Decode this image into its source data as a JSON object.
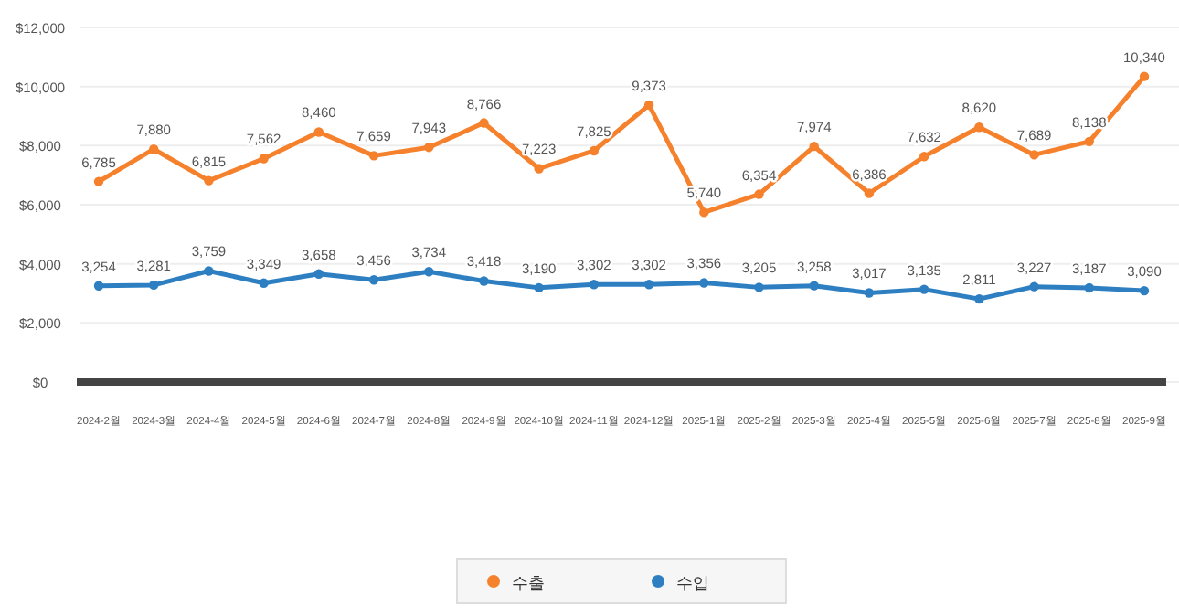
{
  "chart_data": {
    "type": "line",
    "categories": [
      "2024-2월",
      "2024-3월",
      "2024-4월",
      "2024-5월",
      "2024-6월",
      "2024-7월",
      "2024-8월",
      "2024-9월",
      "2024-10월",
      "2024-11월",
      "2024-12월",
      "2025-1월",
      "2025-2월",
      "2025-3월",
      "2025-4월",
      "2025-5월",
      "2025-6월",
      "2025-7월",
      "2025-8월",
      "2025-9월"
    ],
    "series": [
      {
        "name": "수출",
        "color": "#f5812c",
        "values": [
          6785,
          7880,
          6815,
          7562,
          8460,
          7659,
          7943,
          8766,
          7223,
          7825,
          9373,
          5740,
          6354,
          7974,
          6386,
          7632,
          8620,
          7689,
          8138,
          10340
        ],
        "value_labels": [
          "6,785",
          "7,880",
          "6,815",
          "7,562",
          "8,460",
          "7,659",
          "7,943",
          "8,766",
          "7,223",
          "7,825",
          "9,373",
          "5,740",
          "6,354",
          "7,974",
          "6,386",
          "7,632",
          "8,620",
          "7,689",
          "8,138",
          "10,340"
        ]
      },
      {
        "name": "수입",
        "color": "#2e7fc2",
        "values": [
          3254,
          3281,
          3759,
          3349,
          3658,
          3456,
          3734,
          3418,
          3190,
          3302,
          3302,
          3356,
          3205,
          3258,
          3017,
          3135,
          2811,
          3227,
          3187,
          3090
        ],
        "value_labels": [
          "3,254",
          "3,281",
          "3,759",
          "3,349",
          "3,658",
          "3,456",
          "3,734",
          "3,418",
          "3,190",
          "3,302",
          "3,302",
          "3,356",
          "3,205",
          "3,258",
          "3,017",
          "3,135",
          "2,811",
          "3,227",
          "3,187",
          "3,090"
        ]
      }
    ],
    "ylim": [
      0,
      12000
    ],
    "yticks": [
      {
        "value": 0,
        "label": "$0"
      },
      {
        "value": 2000,
        "label": "$2,000"
      },
      {
        "value": 4000,
        "label": "$4,000"
      },
      {
        "value": 6000,
        "label": "$6,000"
      },
      {
        "value": 8000,
        "label": "$8,000"
      },
      {
        "value": 10000,
        "label": "$10,000"
      },
      {
        "value": 12000,
        "label": "$12,000"
      }
    ],
    "grid": "y",
    "marker": "circle",
    "line_style": "solid",
    "legend": "bottom"
  }
}
